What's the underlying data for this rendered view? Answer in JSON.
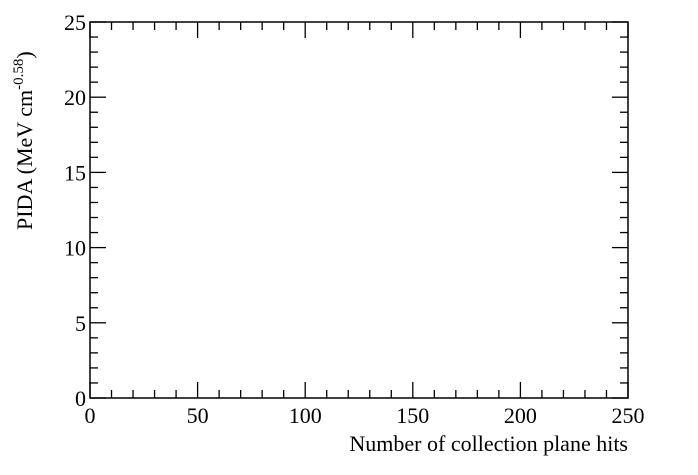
{
  "chart_data": {
    "type": "scatter",
    "title": "",
    "xlabel": "Number of collection plane hits",
    "ylabel_main": "PIDA (MeV cm",
    "ylabel_exponent": "-0.58",
    "ylabel_close": ")",
    "xlim": [
      0,
      250
    ],
    "ylim": [
      0,
      25
    ],
    "x_ticks": [
      0,
      50,
      100,
      150,
      200,
      250
    ],
    "x_tick_labels": [
      "0",
      "50",
      "100",
      "150",
      "200",
      "250"
    ],
    "y_ticks": [
      0,
      5,
      10,
      15,
      20,
      25
    ],
    "y_tick_labels": [
      "0",
      "5",
      "10",
      "15",
      "20",
      "25"
    ],
    "x_minor_step": 10,
    "y_minor_step": 1,
    "grid": false,
    "series": [],
    "colors": {
      "axis": "#000000",
      "background": "#ffffff"
    }
  }
}
